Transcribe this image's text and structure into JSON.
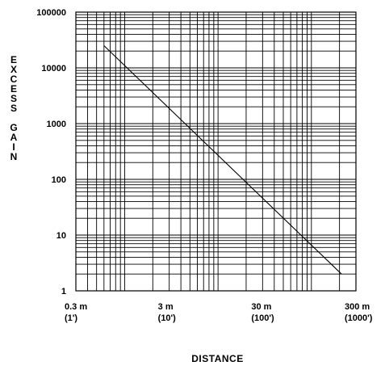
{
  "chart_data": {
    "type": "line",
    "xscale": "log",
    "yscale": "log",
    "xlim": [
      0.3,
      300
    ],
    "ylim": [
      1,
      100000
    ],
    "grid": true,
    "xlabel": "DISTANCE",
    "ylabel": "EXCESS GAIN",
    "y_ticks": [
      {
        "value": 1,
        "label": "1"
      },
      {
        "value": 10,
        "label": "10"
      },
      {
        "value": 100,
        "label": "100"
      },
      {
        "value": 1000,
        "label": "1000"
      },
      {
        "value": 10000,
        "label": "10000"
      },
      {
        "value": 100000,
        "label": "100000"
      }
    ],
    "x_ticks": [
      {
        "value": 0.3,
        "label": "0.3 m",
        "sublabel": "(1')"
      },
      {
        "value": 3,
        "label": "3 m",
        "sublabel": "(10')"
      },
      {
        "value": 30,
        "label": "30 m",
        "sublabel": "(100')"
      },
      {
        "value": 300,
        "label": "300 m",
        "sublabel": "(1000')"
      }
    ],
    "series": [
      {
        "color": "#000000",
        "x": [
          0.6,
          210
        ],
        "y": [
          25000,
          2
        ]
      }
    ]
  }
}
